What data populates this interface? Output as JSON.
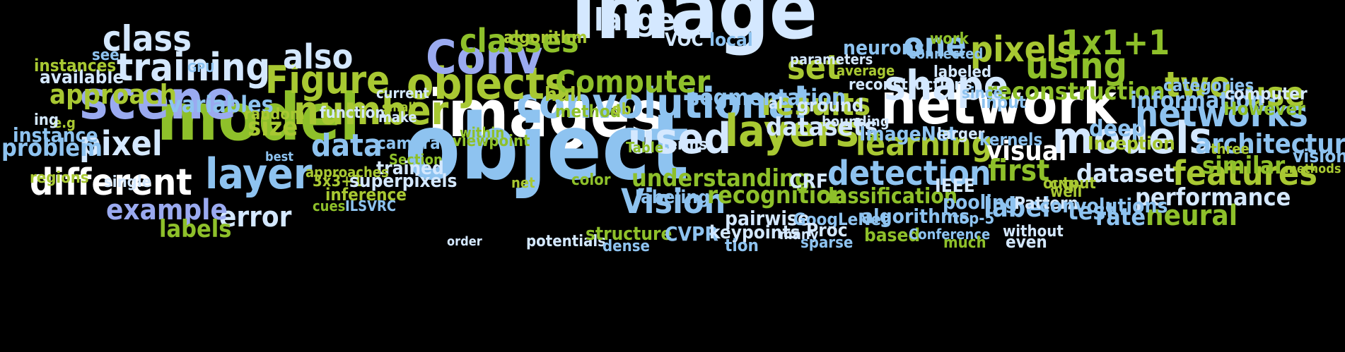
{
  "palette": {
    "white": "#ffffff",
    "pale": "#d4e8ff",
    "light_blue": "#8ec3f0",
    "blue": "#9aaaf0",
    "green": "#8ec02a",
    "lime": "#a8c832"
  },
  "words": [
    {
      "text": "image",
      "color": "pale",
      "rot": 0
    },
    {
      "text": "images",
      "color": "white",
      "rot": 0
    },
    {
      "text": "object",
      "color": "light_blue",
      "rot": 0
    },
    {
      "text": "model",
      "color": "green",
      "rot": 0
    },
    {
      "text": "network",
      "color": "white",
      "rot": 0
    },
    {
      "text": "scene",
      "color": "blue",
      "rot": 0
    },
    {
      "text": "convolutional",
      "color": "light_blue",
      "rot": 0
    },
    {
      "text": "objects",
      "color": "lime",
      "rot": 0
    },
    {
      "text": "layers",
      "color": "lime",
      "rot": 0
    },
    {
      "text": "models",
      "color": "pale",
      "rot": 0
    },
    {
      "text": "number",
      "color": "lime",
      "rot": 0
    },
    {
      "text": "Conv",
      "color": "blue",
      "rot": 0
    },
    {
      "text": "shape",
      "color": "pale",
      "rot": 0
    },
    {
      "text": "layer",
      "color": "light_blue",
      "rot": 0
    },
    {
      "text": "training",
      "color": "pale",
      "rot": 0
    },
    {
      "text": "different",
      "color": "white",
      "rot": 0
    },
    {
      "text": "used",
      "color": "pale",
      "rot": 0
    },
    {
      "text": "Figure",
      "color": "lime",
      "rot": 0
    },
    {
      "text": "detection",
      "color": "light_blue",
      "rot": 0
    },
    {
      "text": "networks",
      "color": "light_blue",
      "rot": 0
    },
    {
      "text": "features",
      "color": "lime",
      "rot": 0
    },
    {
      "text": "using",
      "color": "green",
      "rot": 0
    },
    {
      "text": "Vision",
      "color": "light_blue",
      "rot": 0
    },
    {
      "text": "pixels",
      "color": "lime",
      "rot": 0
    },
    {
      "text": "two",
      "color": "lime",
      "rot": 0
    },
    {
      "text": "class",
      "color": "pale",
      "rot": 0
    },
    {
      "text": "classes",
      "color": "green",
      "rot": 0
    },
    {
      "text": "large",
      "color": "pale",
      "rot": 0
    },
    {
      "text": "use",
      "color": "lime",
      "rot": 0
    },
    {
      "text": "learning",
      "color": "lime",
      "rot": 0
    },
    {
      "text": "results",
      "color": "lime",
      "rot": 0
    },
    {
      "text": "reconstruction",
      "color": "green",
      "rot": 0
    },
    {
      "text": "architecture",
      "color": "light_blue",
      "rot": 0
    },
    {
      "text": "pixel",
      "color": "pale",
      "rot": 0
    },
    {
      "text": "approach",
      "color": "lime",
      "rot": 0
    },
    {
      "text": "data",
      "color": "light_blue",
      "rot": 0
    },
    {
      "text": "Computer",
      "color": "green",
      "rot": 0
    },
    {
      "text": "error",
      "color": "pale",
      "rot": 0
    },
    {
      "text": "example",
      "color": "blue",
      "rot": 0
    },
    {
      "text": "also",
      "color": "pale",
      "rot": 0
    },
    {
      "text": "set",
      "color": "lime",
      "rot": 0
    },
    {
      "text": "one",
      "color": "light_blue",
      "rot": 0
    },
    {
      "text": "1x1+1",
      "color": "green",
      "rot": 0
    },
    {
      "text": "understanding",
      "color": "green",
      "rot": 0
    },
    {
      "text": "datasets",
      "color": "pale",
      "rot": 0
    },
    {
      "text": "visual",
      "color": "white",
      "rot": 0
    },
    {
      "text": "dataset",
      "color": "pale",
      "rot": 0
    },
    {
      "text": "first",
      "color": "green",
      "rot": 0
    },
    {
      "text": "segmentation",
      "color": "light_blue",
      "rot": 0
    },
    {
      "text": "size",
      "color": "lime",
      "rot": 0
    },
    {
      "text": "label",
      "color": "light_blue",
      "rot": 0
    },
    {
      "text": "neural",
      "color": "green",
      "rot": 0
    },
    {
      "text": "performance",
      "color": "pale",
      "rot": 0
    },
    {
      "text": "recognition",
      "color": "green",
      "rot": 0
    },
    {
      "text": "classification",
      "color": "green",
      "rot": 0
    },
    {
      "text": "information",
      "color": "light_blue",
      "rot": 0
    },
    {
      "text": "deep",
      "color": "light_blue",
      "rot": 0
    },
    {
      "text": "similar",
      "color": "green",
      "rot": 0
    },
    {
      "text": "test",
      "color": "light_blue",
      "rot": 0
    },
    {
      "text": "rate",
      "color": "light_blue",
      "rot": 0
    },
    {
      "text": "labels",
      "color": "green",
      "rot": 0
    },
    {
      "text": "problem",
      "color": "light_blue",
      "rot": 0
    },
    {
      "text": "variables",
      "color": "light_blue",
      "rot": 0
    },
    {
      "text": "instance",
      "color": "light_blue",
      "rot": 0
    },
    {
      "text": "available",
      "color": "pale",
      "rot": 0
    },
    {
      "text": "instances",
      "color": "lime",
      "rot": 0
    },
    {
      "text": "see",
      "color": "light_blue",
      "rot": 0
    },
    {
      "text": "GPU",
      "color": "light_blue",
      "rot": 0
    },
    {
      "text": "e.g",
      "color": "lime",
      "rot": 0
    },
    {
      "text": "ing",
      "color": "pale",
      "rot": 0
    },
    {
      "text": "regions",
      "color": "lime",
      "rot": 0
    },
    {
      "text": "single",
      "color": "pale",
      "rot": 0
    },
    {
      "text": "random",
      "color": "lime",
      "rot": 0
    },
    {
      "text": "best",
      "color": "light_blue",
      "rot": 0
    },
    {
      "text": "function",
      "color": "pale",
      "rot": 0
    },
    {
      "text": "current",
      "color": "pale",
      "rot": 0
    },
    {
      "text": "small",
      "color": "lime",
      "rot": 0
    },
    {
      "text": "make",
      "color": "pale",
      "rot": 0
    },
    {
      "text": "within",
      "color": "green",
      "rot": 0
    },
    {
      "text": "viewpoint",
      "color": "green",
      "rot": 0
    },
    {
      "text": "camera",
      "color": "light_blue",
      "rot": 0
    },
    {
      "text": "Section",
      "color": "green",
      "rot": 0
    },
    {
      "text": "trained",
      "color": "pale",
      "rot": 0
    },
    {
      "text": "approaches",
      "color": "lime",
      "rot": 0
    },
    {
      "text": "3x3+1",
      "color": "lime",
      "rot": 0
    },
    {
      "text": "superpixels",
      "color": "pale",
      "rot": 0
    },
    {
      "text": "inference",
      "color": "lime",
      "rot": 0
    },
    {
      "text": "cues",
      "color": "green",
      "rot": 0
    },
    {
      "text": "ILSVRC",
      "color": "light_blue",
      "rot": 0
    },
    {
      "text": "algorithm",
      "color": "lime",
      "rot": 0
    },
    {
      "text": "hull",
      "color": "lime",
      "rot": 0
    },
    {
      "text": "method",
      "color": "green",
      "rot": 0
    },
    {
      "text": "ob",
      "color": "lime",
      "rot": 0
    },
    {
      "text": "VOC",
      "color": "pale",
      "rot": 0
    },
    {
      "text": "local",
      "color": "light_blue",
      "rot": 0
    },
    {
      "text": "Table",
      "color": "green",
      "rot": 0
    },
    {
      "text": "terms",
      "color": "pale",
      "rot": 0
    },
    {
      "text": "net",
      "color": "lime",
      "rot": 0
    },
    {
      "text": "color",
      "color": "green",
      "rot": 0
    },
    {
      "text": "labeling",
      "color": "light_blue",
      "rot": 0
    },
    {
      "text": "order",
      "color": "pale",
      "rot": 0
    },
    {
      "text": "potentials",
      "color": "pale",
      "rot": 0
    },
    {
      "text": "structure",
      "color": "green",
      "rot": 0
    },
    {
      "text": "dense",
      "color": "light_blue",
      "rot": 0
    },
    {
      "text": "CVPR",
      "color": "light_blue",
      "rot": 0
    },
    {
      "text": "keypoints",
      "color": "pale",
      "rot": 0
    },
    {
      "text": "tion",
      "color": "light_blue",
      "rot": 0
    },
    {
      "text": "pairwise",
      "color": "pale",
      "rot": 0
    },
    {
      "text": "GoogLeNet",
      "color": "light_blue",
      "rot": 0
    },
    {
      "text": "many",
      "color": "pale",
      "rot": 0
    },
    {
      "text": "Proc",
      "color": "pale",
      "rot": 0
    },
    {
      "text": "sparse",
      "color": "light_blue",
      "rot": 0
    },
    {
      "text": "CRF",
      "color": "pale",
      "rot": 0
    },
    {
      "text": "algorithms",
      "color": "light_blue",
      "rot": 0
    },
    {
      "text": "based",
      "color": "green",
      "rot": 0
    },
    {
      "text": "Conference",
      "color": "light_blue",
      "rot": 0
    },
    {
      "text": "much",
      "color": "green",
      "rot": 0
    },
    {
      "text": "top-5",
      "color": "light_blue",
      "rot": 0
    },
    {
      "text": "without",
      "color": "pale",
      "rot": 0
    },
    {
      "text": "even",
      "color": "pale",
      "rot": 0
    },
    {
      "text": "IEEE",
      "color": "pale",
      "rot": 0
    },
    {
      "text": "pooling",
      "color": "light_blue",
      "rot": 0
    },
    {
      "text": "Pattern",
      "color": "pale",
      "rot": 0
    },
    {
      "text": "CNN",
      "color": "lime",
      "rot": 0
    },
    {
      "text": "well",
      "color": "lime",
      "rot": 0
    },
    {
      "text": "convolutions",
      "color": "light_blue",
      "rot": 0
    },
    {
      "text": "output",
      "color": "lime",
      "rot": 0
    },
    {
      "text": "et",
      "color": "green",
      "rot": 0
    },
    {
      "text": "al",
      "color": "pale",
      "rot": 0
    },
    {
      "text": "ground",
      "color": "pale",
      "rot": 0
    },
    {
      "text": "bounding",
      "color": "pale",
      "rot": 0
    },
    {
      "text": "ImageNet",
      "color": "light_blue",
      "rot": 0
    },
    {
      "text": "larger",
      "color": "pale",
      "rot": 0
    },
    {
      "text": "kernels",
      "color": "light_blue",
      "rot": 0
    },
    {
      "text": "parameters",
      "color": "pale",
      "rot": 0
    },
    {
      "text": "neurons",
      "color": "light_blue",
      "rot": 0
    },
    {
      "text": "average",
      "color": "lime",
      "rot": 0
    },
    {
      "text": "work",
      "color": "green",
      "rot": 0
    },
    {
      "text": "connected",
      "color": "light_blue",
      "rot": 0
    },
    {
      "text": "labeled",
      "color": "pale",
      "rot": 0
    },
    {
      "text": "reconstructions",
      "color": "pale",
      "rot": 0
    },
    {
      "text": "since",
      "color": "light_blue",
      "rot": 0
    },
    {
      "text": "input",
      "color": "light_blue",
      "rot": 0
    },
    {
      "text": "Inception",
      "color": "lime",
      "rot": 0
    },
    {
      "text": "three",
      "color": "lime",
      "rot": 0
    },
    {
      "text": "categories",
      "color": "light_blue",
      "rot": 0
    },
    {
      "text": "computer",
      "color": "pale",
      "rot": 0
    },
    {
      "text": "However",
      "color": "green",
      "rot": 0
    },
    {
      "text": "vision",
      "color": "light_blue",
      "rot": 0
    },
    {
      "text": "methods",
      "color": "lime",
      "rot": 0
    }
  ]
}
